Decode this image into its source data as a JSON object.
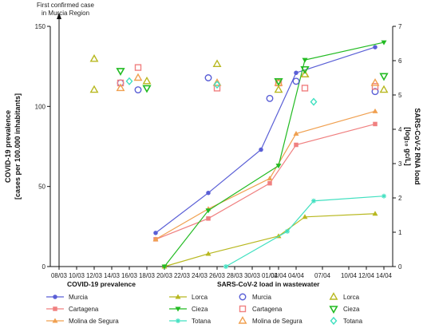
{
  "chart_data": {
    "type": "line",
    "annotation": {
      "lines": [
        "First confirmed case",
        "in Murcia Region"
      ],
      "x": "08/03"
    },
    "x_ticks": [
      "08/03",
      "10/03",
      "12/03",
      "14/03",
      "16/03",
      "18/03",
      "20/03",
      "22/03",
      "24/03",
      "26/03",
      "28/03",
      "30/03",
      "01/04",
      "02/04",
      "04/04",
      "07/04",
      "10/04",
      "12/04",
      "14/04"
    ],
    "x_range": [
      "07/03",
      "15/04"
    ],
    "y_left": {
      "label_lines": [
        "COVID-19 prevalence",
        "[cases per 100.000 inhabitants]"
      ],
      "ticks": [
        0,
        50,
        100,
        150
      ],
      "lim": [
        0,
        150
      ]
    },
    "y_right": {
      "label_lines": [
        "SARS-CoV-2 RNA load",
        "[log₁₀ gc/L]"
      ],
      "ticks": [
        0,
        1,
        2,
        3,
        4,
        5,
        6,
        7
      ],
      "lim": [
        0,
        7
      ]
    },
    "prevalence_series": [
      {
        "name": "Murcia",
        "color": "#5a5fd6",
        "marker": "circle",
        "points": [
          [
            "19/03",
            21
          ],
          [
            "25/03",
            46
          ],
          [
            "31/03",
            73
          ],
          [
            "04/04",
            121
          ],
          [
            "13/04",
            137
          ]
        ]
      },
      {
        "name": "Cartagena",
        "color": "#f08080",
        "marker": "square",
        "points": [
          [
            "19/03",
            17
          ],
          [
            "25/03",
            30
          ],
          [
            "01/04",
            52
          ],
          [
            "04/04",
            76
          ],
          [
            "13/04",
            89
          ]
        ]
      },
      {
        "name": "Molina de Segura",
        "color": "#f0a050",
        "marker": "triangle-up",
        "points": [
          [
            "19/03",
            17
          ],
          [
            "25/03",
            36
          ],
          [
            "01/04",
            55
          ],
          [
            "04/04",
            83
          ],
          [
            "13/04",
            97
          ]
        ]
      },
      {
        "name": "Lorca",
        "color": "#b8b820",
        "marker": "triangle-up",
        "points": [
          [
            "20/03",
            0
          ],
          [
            "25/03",
            8
          ],
          [
            "02/04",
            19
          ],
          [
            "05/04",
            31
          ],
          [
            "13/04",
            33
          ]
        ]
      },
      {
        "name": "Cieza",
        "color": "#22bb22",
        "marker": "triangle-down",
        "points": [
          [
            "20/03",
            0
          ],
          [
            "25/03",
            35
          ],
          [
            "02/04",
            63
          ],
          [
            "05/04",
            129
          ],
          [
            "14/04",
            140
          ]
        ]
      },
      {
        "name": "Totana",
        "color": "#40e0c0",
        "marker": "star",
        "points": [
          [
            "27/03",
            0
          ],
          [
            "03/04",
            22
          ],
          [
            "06/04",
            41
          ],
          [
            "14/04",
            44
          ]
        ]
      }
    ],
    "wastewater_series": [
      {
        "name": "Murcia",
        "color": "#5a5fd6",
        "marker": "circle-open",
        "points": [
          [
            "15/03",
            5.35
          ],
          [
            "17/03",
            5.15
          ],
          [
            "25/03",
            5.5
          ],
          [
            "01/04",
            4.9
          ],
          [
            "04/04",
            5.4
          ],
          [
            "13/04",
            5.1
          ]
        ]
      },
      {
        "name": "Cartagena",
        "color": "#f08080",
        "marker": "square-open",
        "points": [
          [
            "15/03",
            5.35
          ],
          [
            "17/03",
            5.8
          ],
          [
            "26/03",
            5.2
          ],
          [
            "02/04",
            5.35
          ],
          [
            "05/04",
            5.2
          ],
          [
            "13/04",
            5.25
          ]
        ]
      },
      {
        "name": "Molina de Segura",
        "color": "#f0a050",
        "marker": "triangle-up-open",
        "points": [
          [
            "15/03",
            5.2
          ],
          [
            "17/03",
            5.5
          ],
          [
            "26/03",
            5.35
          ],
          [
            "02/04",
            5.35
          ],
          [
            "05/04",
            5.6
          ],
          [
            "13/04",
            5.35
          ]
        ]
      },
      {
        "name": "Lorca",
        "color": "#b8b820",
        "marker": "triangle-up-open",
        "points": [
          [
            "12/03",
            5.15
          ],
          [
            "12/03",
            6.05
          ],
          [
            "18/03",
            5.4
          ],
          [
            "26/03",
            5.9
          ],
          [
            "02/04",
            5.15
          ],
          [
            "05/04",
            5.6
          ],
          [
            "14/04",
            5.15
          ]
        ]
      },
      {
        "name": "Cieza",
        "color": "#22bb22",
        "marker": "triangle-down-open",
        "points": [
          [
            "15/03",
            5.7
          ],
          [
            "18/03",
            5.2
          ],
          [
            "02/04",
            5.4
          ],
          [
            "05/04",
            5.75
          ],
          [
            "14/04",
            5.55
          ]
        ]
      },
      {
        "name": "Totana",
        "color": "#40e0c0",
        "marker": "diamond-open",
        "points": [
          [
            "16/03",
            5.4
          ],
          [
            "26/03",
            5.3
          ],
          [
            "06/04",
            4.8
          ]
        ]
      }
    ],
    "legend_left": {
      "title": "COVID-19 prevalence",
      "items": [
        "Murcia",
        "Cartagena",
        "Molina de Segura",
        "Lorca",
        "Cieza",
        "Totana"
      ]
    },
    "legend_right": {
      "title": "SARS-CoV-2 load in wastewater",
      "items": [
        "Murcia",
        "Cartagena",
        "Molina de Segura",
        "Lorca",
        "Cieza",
        "Totana"
      ]
    }
  }
}
